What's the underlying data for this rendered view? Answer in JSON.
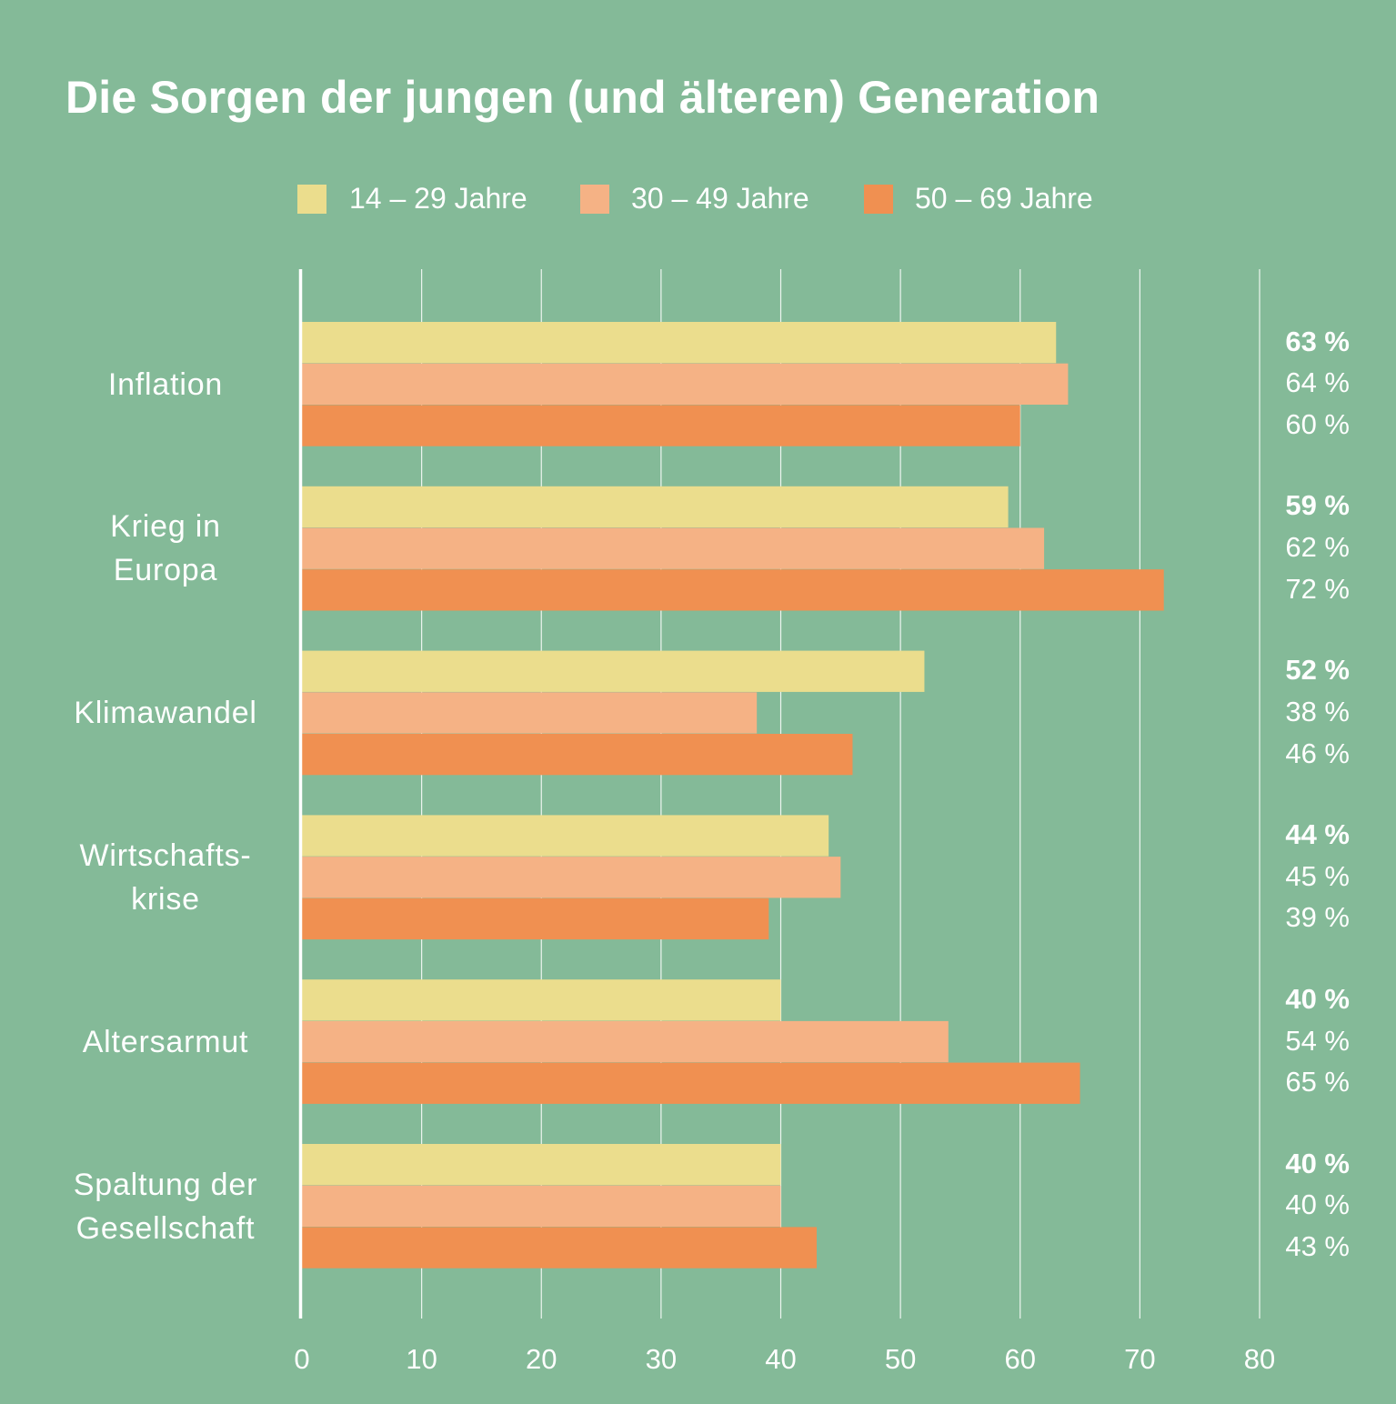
{
  "chart_data": {
    "type": "bar",
    "orientation": "horizontal",
    "title": "Die Sorgen der jungen (und älteren) Generation",
    "categories": [
      [
        "Inflation"
      ],
      [
        "Krieg in",
        "Europa"
      ],
      [
        "Klimawandel"
      ],
      [
        "Wirtschafts-",
        "krise"
      ],
      [
        "Altersarmut"
      ],
      [
        "Spaltung der",
        "Gesellschaft"
      ]
    ],
    "series": [
      {
        "name": "14 – 29 Jahre",
        "color": "#ebdd8d",
        "values": [
          63,
          59,
          52,
          44,
          40,
          40
        ],
        "labels": [
          "63 %",
          "59 %",
          "52 %",
          "44 %",
          "40 %",
          "40 %"
        ]
      },
      {
        "name": "30 – 49 Jahre",
        "color": "#f5b285",
        "values": [
          64,
          62,
          38,
          45,
          54,
          40
        ],
        "labels": [
          "64 %",
          "62 %",
          "38 %",
          "45 %",
          "54 %",
          "40 %"
        ]
      },
      {
        "name": "50 – 69 Jahre",
        "color": "#f09051",
        "values": [
          60,
          72,
          46,
          39,
          65,
          43
        ],
        "labels": [
          "60 %",
          "72 %",
          "46 %",
          "39 %",
          "65 %",
          "43 %"
        ]
      }
    ],
    "xlim": [
      0,
      80
    ],
    "xticks": [
      "0",
      "10",
      "20",
      "30",
      "40",
      "50",
      "60",
      "70",
      "80"
    ],
    "grid": true,
    "legend_position": "top"
  }
}
